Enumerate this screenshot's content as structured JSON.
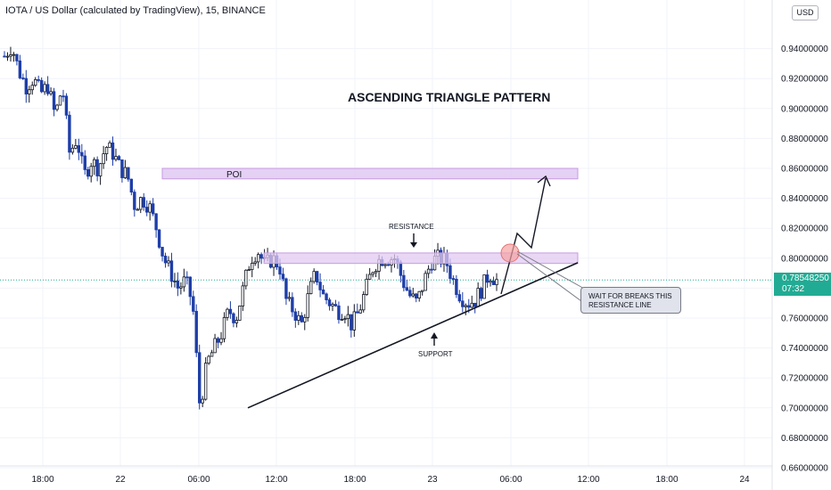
{
  "header": {
    "symbol_title": "IOTA / US Dollar (calculated by TradingView), 15, BINANCE",
    "currency": "USD"
  },
  "last_price": {
    "value": "0.78548250",
    "countdown": "07:32",
    "color": "#22ab94"
  },
  "colors": {
    "up": "#131722",
    "down": "#1e3ea8",
    "zone": "#e1c9f2",
    "zone_border": "#c79be0",
    "grid": "#f0f3fa"
  },
  "chart_data": {
    "type": "candlestick",
    "symbol": "IOTA/USD",
    "timeframe": "15",
    "exchange": "BINANCE",
    "y_ticks": [
      "0.94000000",
      "0.92000000",
      "0.90000000",
      "0.88000000",
      "0.86000000",
      "0.84000000",
      "0.82000000",
      "0.80000000",
      "0.78000000",
      "0.76000000",
      "0.74000000",
      "0.72000000",
      "0.70000000",
      "0.68000000",
      "0.66000000"
    ],
    "y_tick_values": [
      0.94,
      0.92,
      0.9,
      0.88,
      0.86,
      0.84,
      0.82,
      0.8,
      0.78,
      0.76,
      0.74,
      0.72,
      0.7,
      0.68,
      0.66
    ],
    "ylim": [
      0.66,
      0.95
    ],
    "x_ticks": [
      "18:00",
      "22",
      "06:00",
      "12:00",
      "18:00",
      "23",
      "06:00",
      "12:00",
      "18:00",
      "24"
    ],
    "price_path": [
      0.935,
      0.942,
      0.925,
      0.915,
      0.92,
      0.91,
      0.915,
      0.895,
      0.915,
      0.87,
      0.88,
      0.855,
      0.865,
      0.86,
      0.875,
      0.87,
      0.86,
      0.855,
      0.835,
      0.84,
      0.835,
      0.82,
      0.8,
      0.79,
      0.78,
      0.785,
      0.77,
      0.7,
      0.73,
      0.74,
      0.75,
      0.765,
      0.76,
      0.78,
      0.8,
      0.805,
      0.795,
      0.8,
      0.795,
      0.77,
      0.765,
      0.755,
      0.775,
      0.79,
      0.775,
      0.77,
      0.765,
      0.765,
      0.755,
      0.765,
      0.78,
      0.795,
      0.8,
      0.8,
      0.8,
      0.785,
      0.775,
      0.77,
      0.785,
      0.798,
      0.8,
      0.798,
      0.785,
      0.775,
      0.77,
      0.772,
      0.78,
      0.79,
      0.785
    ],
    "annotations": {
      "title": "ASCENDING TRIANGLE PATTERN",
      "poi": {
        "label": "POI",
        "from": 0.853,
        "to": 0.86
      },
      "resistance": {
        "label": "RESISTANCE",
        "from": 0.7965,
        "to": 0.8035
      },
      "support_label": "SUPPORT",
      "note": "WAIT FOR BREAKS THIS RESISTANCE LINE"
    }
  }
}
